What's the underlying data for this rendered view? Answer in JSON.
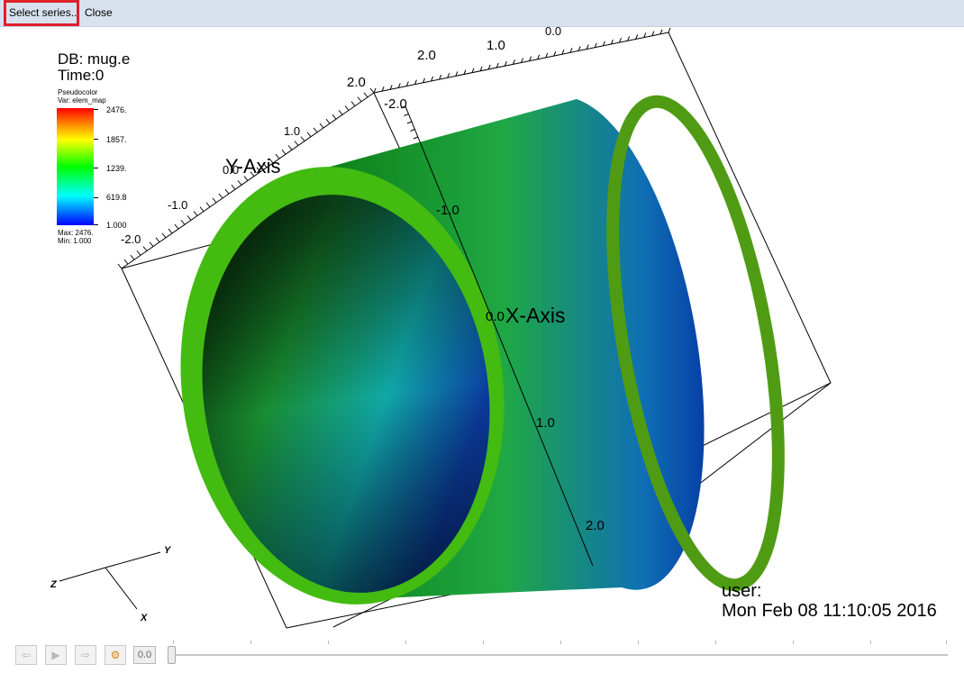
{
  "menubar": {
    "select_series_label": "Select series...",
    "close_label": "Close"
  },
  "hud": {
    "db": "DB: mug.e",
    "time": "Time:0",
    "plot_type": "Pseudocolor",
    "variable": "Var: elem_map",
    "legend": {
      "ticks": [
        "2476.",
        "1857.",
        "1239.",
        "619.8",
        "1.000"
      ],
      "max": "Max:  2476.",
      "min": "Min:  1.000",
      "colors": [
        "#ff0000",
        "#ffff00",
        "#00ff00",
        "#00ffff",
        "#0000ff"
      ]
    },
    "user": "user:",
    "datetime": "Mon Feb 08 11:10:05 2016"
  },
  "axes": {
    "x_title": "X-Axis",
    "y_title": "Y-Axis",
    "x_ticks": [
      "-2.0",
      "-1.0",
      "0.0",
      "1.0",
      "2.0"
    ],
    "y_ticks": [
      "-2.0",
      "-1.0",
      "0.0",
      "1.0",
      "2.0"
    ],
    "z_ticks": [
      "1.0",
      "0.0"
    ],
    "triad": {
      "x": "X",
      "y": "Y",
      "z": "Z"
    }
  },
  "mesh": {
    "outer_color": "#44bb10",
    "colors": [
      "#003a00",
      "#1a8a1a",
      "#00aa88",
      "#00a0c8",
      "#0030a0"
    ]
  },
  "animation": {
    "time_value": "0.0",
    "icons": [
      "back-step-icon",
      "play-icon",
      "forward-step-icon",
      "settings-gear-icon"
    ],
    "position": 0
  }
}
